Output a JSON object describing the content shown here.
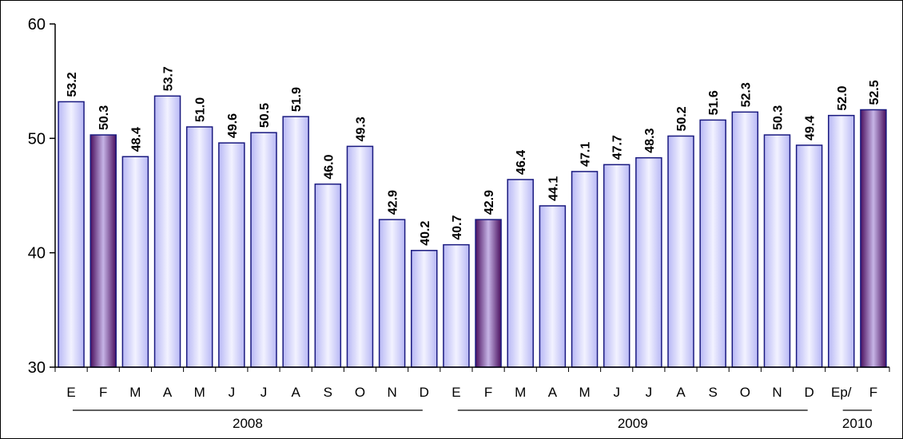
{
  "chart_data": {
    "type": "bar",
    "categories": [
      "E",
      "F",
      "M",
      "A",
      "M",
      "J",
      "J",
      "A",
      "S",
      "O",
      "N",
      "D",
      "E",
      "F",
      "M",
      "A",
      "M",
      "J",
      "J",
      "A",
      "S",
      "O",
      "N",
      "D",
      "Ep/",
      "F"
    ],
    "values": [
      53.2,
      50.3,
      48.4,
      53.7,
      51.0,
      49.6,
      50.5,
      51.9,
      46.0,
      49.3,
      42.9,
      40.2,
      40.7,
      42.9,
      46.4,
      44.1,
      47.1,
      47.7,
      48.3,
      50.2,
      51.6,
      52.3,
      50.3,
      49.4,
      52.0,
      52.5
    ],
    "value_labels": [
      "53.2",
      "50.3",
      "48.4",
      "53.7",
      "51.0",
      "49.6",
      "50.5",
      "51.9",
      "46.0",
      "49.3",
      "42.9",
      "40.2",
      "40.7",
      "42.9",
      "46.4",
      "44.1",
      "47.1",
      "47.7",
      "48.3",
      "50.2",
      "51.6",
      "52.3",
      "50.3",
      "49.4",
      "52.0",
      "52.5"
    ],
    "highlighted": [
      false,
      true,
      false,
      false,
      false,
      false,
      false,
      false,
      false,
      false,
      false,
      false,
      false,
      true,
      false,
      false,
      false,
      false,
      false,
      false,
      false,
      false,
      false,
      false,
      false,
      true
    ],
    "groups": [
      {
        "label": "2008",
        "start": 0,
        "end": 11
      },
      {
        "label": "2009",
        "start": 12,
        "end": 23
      },
      {
        "label": "2010",
        "start": 24,
        "end": 25
      }
    ],
    "ylim": [
      30,
      60
    ],
    "yticks": [
      30,
      40,
      50,
      60
    ],
    "ytick_labels": [
      "30",
      "40",
      "50",
      "60"
    ],
    "title": "",
    "xlabel": "",
    "ylabel": "",
    "grid": false,
    "legend": "none",
    "colors": {
      "bar_fill_light": "#ccccff",
      "bar_fill_edge": "#e6e6ff",
      "bar_fill_dark": "#5a1a6e",
      "bar_fill_dark_center": "#a98ac8",
      "bar_stroke": "#1a1a80",
      "axis": "#000000"
    }
  }
}
